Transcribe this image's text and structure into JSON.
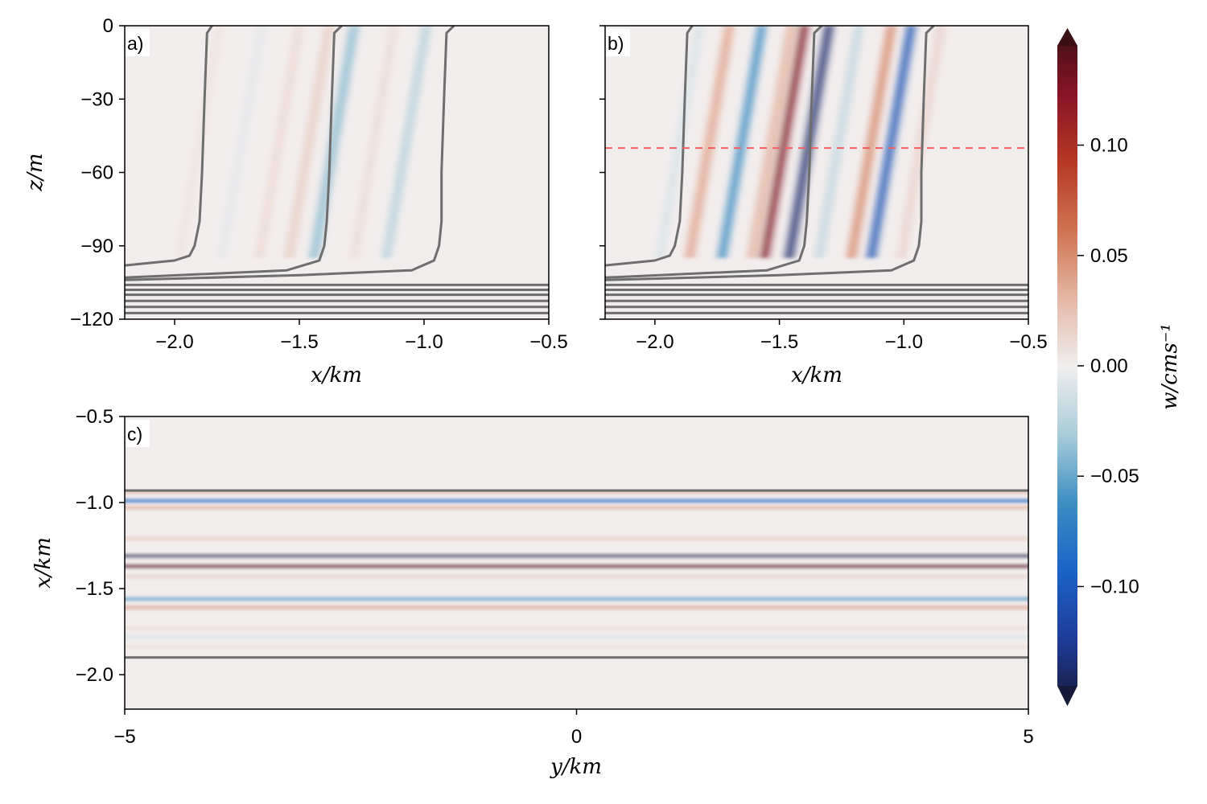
{
  "chart_data": [
    {
      "id": "a",
      "type": "heatmap",
      "panel_label": "a)",
      "xlabel": "x/km",
      "ylabel": "z/m",
      "xlim": [
        -2.2,
        -0.5
      ],
      "ylim": [
        -120,
        0
      ],
      "xticks": [
        -2.0,
        -1.5,
        -1.0,
        -0.5
      ],
      "xtick_labels": [
        "−2.0",
        "−1.5",
        "−1.0",
        "−0.5"
      ],
      "yticks": [
        0,
        -30,
        -60,
        -90,
        -120
      ],
      "ytick_labels": [
        "0",
        "−30",
        "−60",
        "−90",
        "−120"
      ],
      "grid": false,
      "field_bands": [
        {
          "x_top": -1.82,
          "tilt_km_per_m": 0.0017,
          "width_km": 0.03,
          "value": 0.006
        },
        {
          "x_top": -1.65,
          "tilt_km_per_m": 0.0017,
          "width_km": 0.03,
          "value": -0.006
        },
        {
          "x_top": -1.5,
          "tilt_km_per_m": 0.0017,
          "width_km": 0.03,
          "value": 0.012
        },
        {
          "x_top": -1.38,
          "tilt_km_per_m": 0.0017,
          "width_km": 0.03,
          "value": 0.018
        },
        {
          "x_top": -1.28,
          "tilt_km_per_m": 0.0017,
          "width_km": 0.035,
          "value": -0.035
        },
        {
          "x_top": -1.12,
          "tilt_km_per_m": 0.0017,
          "width_km": 0.03,
          "value": 0.01
        },
        {
          "x_top": -0.99,
          "tilt_km_per_m": 0.0017,
          "width_km": 0.03,
          "value": -0.025
        }
      ],
      "contours": [
        {
          "points": [
            [
              -1.85,
              0
            ],
            [
              -1.87,
              -3
            ],
            [
              -1.88,
              -30
            ],
            [
              -1.89,
              -60
            ],
            [
              -1.9,
              -80
            ],
            [
              -1.92,
              -90
            ],
            [
              -1.94,
              -94
            ],
            [
              -2.0,
              -96
            ],
            [
              -2.2,
              -98
            ]
          ]
        },
        {
          "points": [
            [
              -1.33,
              0
            ],
            [
              -1.36,
              -3
            ],
            [
              -1.37,
              -30
            ],
            [
              -1.38,
              -60
            ],
            [
              -1.39,
              -80
            ],
            [
              -1.4,
              -90
            ],
            [
              -1.42,
              -96
            ],
            [
              -1.55,
              -100
            ],
            [
              -2.2,
              -103
            ]
          ]
        },
        {
          "points": [
            [
              -0.88,
              0
            ],
            [
              -0.91,
              -3
            ],
            [
              -0.92,
              -30
            ],
            [
              -0.93,
              -60
            ],
            [
              -0.93,
              -80
            ],
            [
              -0.94,
              -90
            ],
            [
              -0.96,
              -96
            ],
            [
              -1.05,
              -100
            ],
            [
              -1.5,
              -102
            ],
            [
              -2.2,
              -104
            ]
          ]
        },
        {
          "points": [
            [
              -2.2,
              -106
            ],
            [
              -0.5,
              -106
            ]
          ]
        },
        {
          "points": [
            [
              -2.2,
              -108
            ],
            [
              -0.5,
              -108
            ]
          ]
        },
        {
          "points": [
            [
              -2.2,
              -110
            ],
            [
              -0.5,
              -110
            ]
          ]
        },
        {
          "points": [
            [
              -2.2,
              -112.5
            ],
            [
              -0.5,
              -112.5
            ]
          ]
        },
        {
          "points": [
            [
              -2.2,
              -115
            ],
            [
              -0.5,
              -115
            ]
          ]
        },
        {
          "points": [
            [
              -2.2,
              -117.5
            ],
            [
              -0.5,
              -117.5
            ]
          ]
        }
      ]
    },
    {
      "id": "b",
      "type": "heatmap",
      "panel_label": "b)",
      "xlabel": "x/km",
      "ylabel": "",
      "xlim": [
        -2.2,
        -0.5
      ],
      "ylim": [
        -120,
        0
      ],
      "xticks": [
        -2.0,
        -1.5,
        -1.0,
        -0.5
      ],
      "xtick_labels": [
        "−2.0",
        "−1.5",
        "−1.0",
        "−0.5"
      ],
      "yticks": [
        0,
        -30,
        -60,
        -90,
        -120
      ],
      "ytick_labels": [],
      "grid": false,
      "reference_line": {
        "z": -50,
        "color": "#f06060",
        "style": "dashed"
      },
      "field_bands": [
        {
          "x_top": -1.82,
          "tilt_km_per_m": 0.0017,
          "width_km": 0.03,
          "value": -0.01
        },
        {
          "x_top": -1.7,
          "tilt_km_per_m": 0.0017,
          "width_km": 0.035,
          "value": 0.035
        },
        {
          "x_top": -1.57,
          "tilt_km_per_m": 0.0017,
          "width_km": 0.03,
          "value": -0.06
        },
        {
          "x_top": -1.45,
          "tilt_km_per_m": 0.0017,
          "width_km": 0.035,
          "value": 0.03
        },
        {
          "x_top": -1.4,
          "tilt_km_per_m": 0.0017,
          "width_km": 0.03,
          "value": 0.12
        },
        {
          "x_top": -1.3,
          "tilt_km_per_m": 0.0017,
          "width_km": 0.03,
          "value": -0.13
        },
        {
          "x_top": -1.18,
          "tilt_km_per_m": 0.0017,
          "width_km": 0.03,
          "value": -0.02
        },
        {
          "x_top": -1.05,
          "tilt_km_per_m": 0.0017,
          "width_km": 0.03,
          "value": 0.05
        },
        {
          "x_top": -0.97,
          "tilt_km_per_m": 0.0017,
          "width_km": 0.03,
          "value": -0.1
        },
        {
          "x_top": -0.85,
          "tilt_km_per_m": 0.0017,
          "width_km": 0.03,
          "value": 0.015
        }
      ],
      "contours": [
        {
          "points": [
            [
              -1.85,
              0
            ],
            [
              -1.87,
              -3
            ],
            [
              -1.88,
              -30
            ],
            [
              -1.89,
              -60
            ],
            [
              -1.9,
              -80
            ],
            [
              -1.92,
              -90
            ],
            [
              -1.94,
              -94
            ],
            [
              -2.0,
              -96
            ],
            [
              -2.2,
              -98
            ]
          ]
        },
        {
          "points": [
            [
              -1.33,
              0
            ],
            [
              -1.36,
              -3
            ],
            [
              -1.37,
              -30
            ],
            [
              -1.38,
              -60
            ],
            [
              -1.39,
              -80
            ],
            [
              -1.4,
              -90
            ],
            [
              -1.42,
              -96
            ],
            [
              -1.55,
              -100
            ],
            [
              -2.2,
              -103
            ]
          ]
        },
        {
          "points": [
            [
              -0.88,
              0
            ],
            [
              -0.91,
              -3
            ],
            [
              -0.92,
              -30
            ],
            [
              -0.93,
              -60
            ],
            [
              -0.93,
              -80
            ],
            [
              -0.94,
              -90
            ],
            [
              -0.96,
              -96
            ],
            [
              -1.05,
              -100
            ],
            [
              -1.5,
              -102
            ],
            [
              -2.2,
              -104
            ]
          ]
        },
        {
          "points": [
            [
              -2.2,
              -106
            ],
            [
              -0.5,
              -106
            ]
          ]
        },
        {
          "points": [
            [
              -2.2,
              -108
            ],
            [
              -0.5,
              -108
            ]
          ]
        },
        {
          "points": [
            [
              -2.2,
              -110
            ],
            [
              -0.5,
              -110
            ]
          ]
        },
        {
          "points": [
            [
              -2.2,
              -112.5
            ],
            [
              -0.5,
              -112.5
            ]
          ]
        },
        {
          "points": [
            [
              -2.2,
              -115
            ],
            [
              -0.5,
              -115
            ]
          ]
        },
        {
          "points": [
            [
              -2.2,
              -117.5
            ],
            [
              -0.5,
              -117.5
            ]
          ]
        }
      ]
    },
    {
      "id": "c",
      "type": "heatmap",
      "panel_label": "c)",
      "xlabel": "y/km",
      "ylabel": "x/km",
      "xlim": [
        -5,
        5
      ],
      "ylim": [
        -2.2,
        -0.5
      ],
      "xticks": [
        -5,
        0,
        5
      ],
      "xtick_labels": [
        "−5",
        "0",
        "5"
      ],
      "yticks": [
        -0.5,
        -1.0,
        -1.5,
        -2.0
      ],
      "ytick_labels": [
        "−0.5",
        "−1.0",
        "−1.5",
        "−2.0"
      ],
      "grid": false,
      "field_bands": [
        {
          "x": -0.94,
          "width_km": 0.012,
          "value": 0.035
        },
        {
          "x": -0.99,
          "width_km": 0.014,
          "value": -0.09
        },
        {
          "x": -1.03,
          "width_km": 0.012,
          "value": 0.04
        },
        {
          "x": -1.21,
          "width_km": 0.014,
          "value": 0.02
        },
        {
          "x": -1.31,
          "width_km": 0.012,
          "value": -0.14
        },
        {
          "x": -1.37,
          "width_km": 0.012,
          "value": 0.14
        },
        {
          "x": -1.43,
          "width_km": 0.012,
          "value": 0.02
        },
        {
          "x": -1.56,
          "width_km": 0.012,
          "value": -0.06
        },
        {
          "x": -1.61,
          "width_km": 0.014,
          "value": 0.04
        },
        {
          "x": -1.73,
          "width_km": 0.014,
          "value": 0.012
        },
        {
          "x": -1.78,
          "width_km": 0.012,
          "value": -0.012
        },
        {
          "x": -1.84,
          "width_km": 0.014,
          "value": 0.01
        }
      ],
      "contour_levels_x": [
        -0.93,
        -1.9
      ]
    }
  ],
  "colorbar": {
    "label": "w/cms⁻¹",
    "limits": [
      -0.145,
      0.145
    ],
    "ticks": [
      0.1,
      0.05,
      0.0,
      -0.05,
      -0.1
    ],
    "tick_labels": [
      "0.10",
      "0.05",
      "0.00",
      "−0.05",
      "−0.10"
    ],
    "colors": [
      "#161b3a",
      "#1f3c9a",
      "#1a64c8",
      "#3d8fc2",
      "#a9cdd9",
      "#efeeee",
      "#e5b8a6",
      "#d07451",
      "#b73a25",
      "#8a1426",
      "#3b1014"
    ]
  },
  "colors": {
    "contour": "#6e6e6e",
    "background_field": "#f2eded"
  }
}
